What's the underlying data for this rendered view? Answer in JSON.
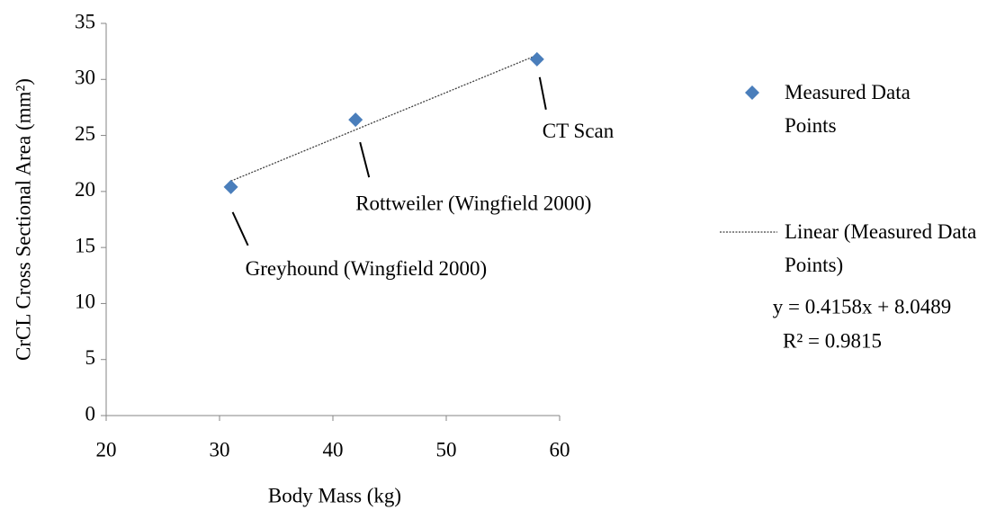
{
  "chart_data": {
    "type": "scatter",
    "x_label": "Body Mass (kg)",
    "y_label": "CrCL Cross Sectional Area (mm²)",
    "series": [
      {
        "name": "Measured Data Points",
        "color": "#4a7ebb",
        "x": [
          31,
          42,
          58
        ],
        "values": [
          20.4,
          26.4,
          31.8
        ]
      }
    ],
    "trendline": {
      "name": "Linear (Measured Data Points)",
      "type": "linear",
      "color": "#404040",
      "equation": "y = 0.4158x + 8.0489",
      "r_squared": "R² = 0.9815"
    },
    "annotations": [
      "Greyhound (Wingfield 2000)",
      "Rottweiler (Wingfield 2000)",
      "CT Scan"
    ],
    "xlim": [
      20,
      60
    ],
    "xticks": [
      20,
      30,
      40,
      50,
      60
    ],
    "ylim": [
      0,
      35
    ],
    "yticks": [
      0,
      5,
      10,
      15,
      20,
      25,
      30,
      35
    ],
    "grid": false,
    "legend": "right"
  }
}
